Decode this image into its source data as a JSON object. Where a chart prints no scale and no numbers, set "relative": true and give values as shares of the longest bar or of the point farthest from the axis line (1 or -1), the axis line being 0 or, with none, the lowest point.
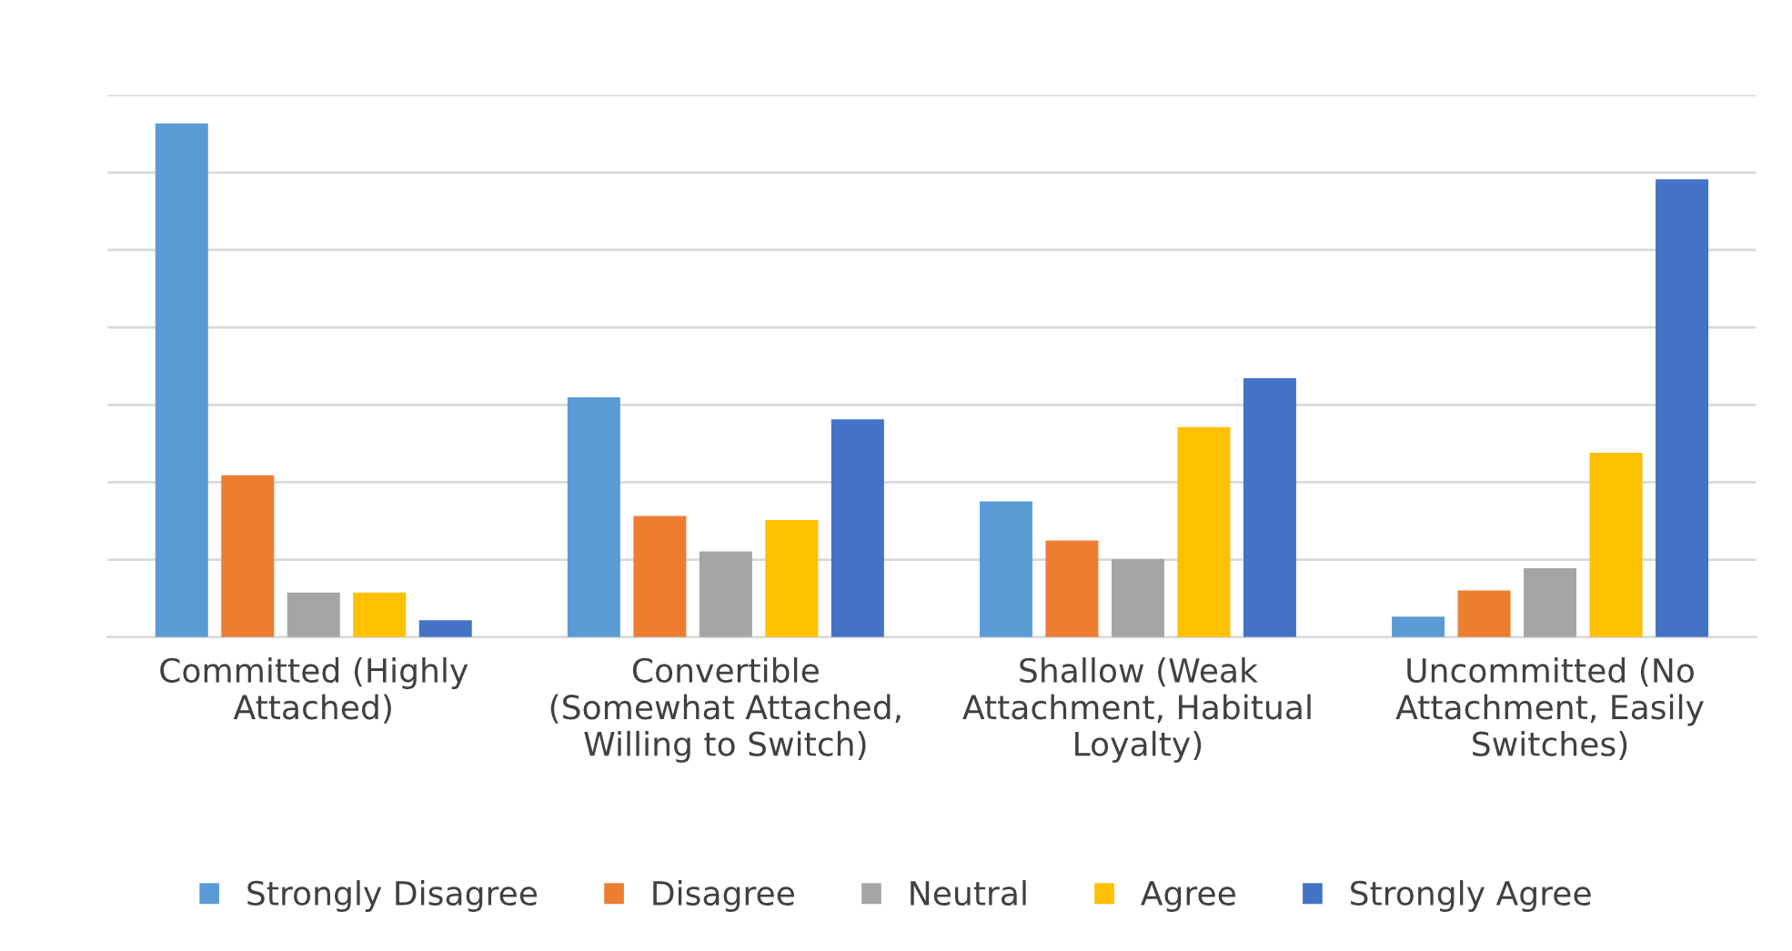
{
  "chart_data": {
    "type": "bar",
    "relative": true,
    "grid": "y",
    "legend": "bottom",
    "categories": [
      "Committed (Highly\nAttached)",
      "Convertible\n(Somewhat Attached,\nWilling to Switch)",
      "Shallow (Weak\nAttachment, Habitual\nLoyalty)",
      "Uncommitted (No\nAttachment, Easily\nSwitches)"
    ],
    "series": [
      {
        "name": "Strongly Disagree",
        "color": "#5b9bd5",
        "values": [
          1,
          0.467,
          0.264,
          0.04
        ]
      },
      {
        "name": "Disagree",
        "color": "#ed7d31",
        "values": [
          0.315,
          0.236,
          0.188,
          0.091
        ]
      },
      {
        "name": "Neutral",
        "color": "#a5a5a5",
        "values": [
          0.087,
          0.167,
          0.152,
          0.134
        ]
      },
      {
        "name": "Agree",
        "color": "#ffc000",
        "values": [
          0.087,
          0.228,
          0.409,
          0.359
        ]
      },
      {
        "name": "Strongly Agree",
        "color": "#4472c4",
        "values": [
          0.033,
          0.424,
          0.504,
          0.891
        ]
      }
    ]
  }
}
